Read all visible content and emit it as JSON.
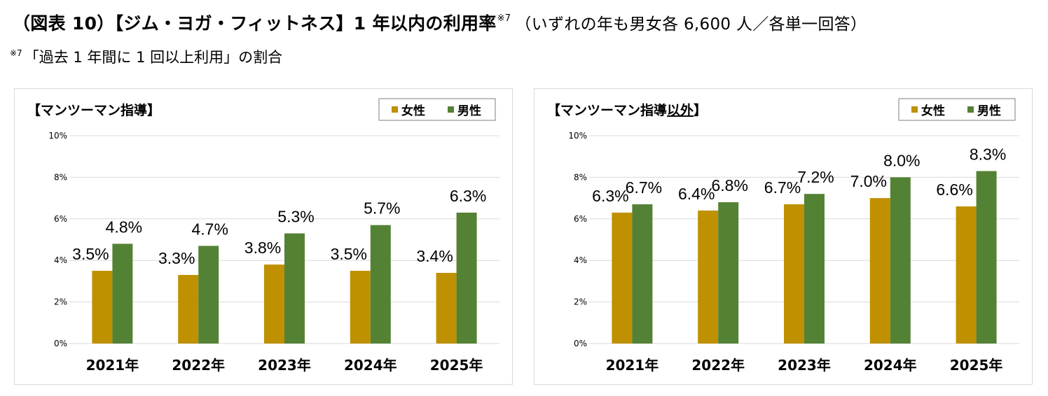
{
  "header": {
    "title": "（図表 10）【ジム・ヨガ・フィットネス】1 年以内の利用率",
    "title_sup": "※7",
    "title_condition": "（いずれの年も男女各 6,600 人／各単一回答）",
    "note_mark": "※7",
    "note_text": "「過去 1 年間に 1 回以上利用」の割合"
  },
  "colors": {
    "female": "#bf9000",
    "male": "#548235"
  },
  "chart_data": [
    {
      "type": "bar",
      "title": "【マンツーマン指導】",
      "categories": [
        "2021年",
        "2022年",
        "2023年",
        "2024年",
        "2025年"
      ],
      "series": [
        {
          "name": "女性",
          "values": [
            3.5,
            3.3,
            3.8,
            3.5,
            3.4
          ],
          "labels": [
            "3.5%",
            "3.3%",
            "3.8%",
            "3.5%",
            "3.4%"
          ]
        },
        {
          "name": "男性",
          "values": [
            4.8,
            4.7,
            5.3,
            5.7,
            6.3
          ],
          "labels": [
            "4.8%",
            "4.7%",
            "5.3%",
            "5.7%",
            "6.3%"
          ]
        }
      ],
      "ylim": [
        0,
        10
      ],
      "yticks": [
        "0%",
        "2%",
        "4%",
        "6%",
        "8%",
        "10%"
      ],
      "grid": true,
      "legend": "top-right"
    },
    {
      "type": "bar",
      "title": "【マンツーマン指導以外】",
      "title_underlined_part": "以外",
      "categories": [
        "2021年",
        "2022年",
        "2023年",
        "2024年",
        "2025年"
      ],
      "series": [
        {
          "name": "女性",
          "values": [
            6.3,
            6.4,
            6.7,
            7.0,
            6.6
          ],
          "labels": [
            "6.3%",
            "6.4%",
            "6.7%",
            "7.0%",
            "6.6%"
          ]
        },
        {
          "name": "男性",
          "values": [
            6.7,
            6.8,
            7.2,
            8.0,
            8.3
          ],
          "labels": [
            "6.7%",
            "6.8%",
            "7.2%",
            "8.0%",
            "8.3%"
          ]
        }
      ],
      "ylim": [
        0,
        10
      ],
      "yticks": [
        "0%",
        "2%",
        "4%",
        "6%",
        "8%",
        "10%"
      ],
      "grid": true,
      "legend": "top-right"
    }
  ]
}
